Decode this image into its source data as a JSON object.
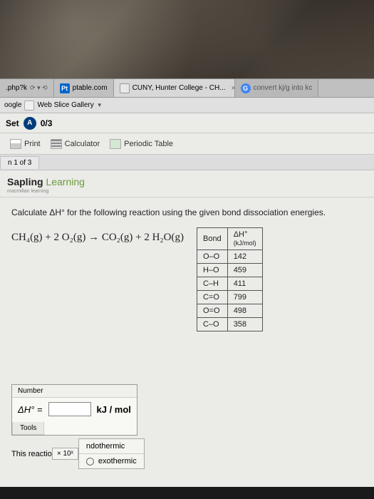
{
  "tabs": [
    {
      "favicon_bg": "#fff",
      "label": ".php?k",
      "controls": "⟳ ▾ ⟲"
    },
    {
      "favicon_class": "fav-pt",
      "favicon_text": "Pt",
      "label": "ptable.com"
    },
    {
      "favicon_class": "fav-sap",
      "favicon_text": "",
      "label": "CUNY, Hunter College - CH...",
      "closable": true,
      "active": true
    },
    {
      "favicon_class": "fav-g",
      "favicon_text": "G",
      "label": "convert kj/g into kc"
    }
  ],
  "bookmarks": {
    "item1": "oogle",
    "item2": "Web Slice Gallery"
  },
  "set_bar": {
    "label": "Set",
    "badge": "A",
    "progress": "0/3"
  },
  "toolbar": {
    "print": "Print",
    "calc": "Calculator",
    "periodic": "Periodic Table"
  },
  "page_tab": "n 1 of 3",
  "brand": {
    "name": "Sapling",
    "sub": "Learning",
    "tagline": "macmillan learning"
  },
  "question_text": "Calculate ΔH° for the following reaction using the given bond dissociation energies.",
  "equation": "CH₄(g) + 2 O₂(g)  →  CO₂(g) + 2 H₂O(g)",
  "bond_table": {
    "header": {
      "col1": "Bond",
      "col2_top": "ΔH°",
      "col2_sub": "(kJ/mol)"
    },
    "rows": [
      {
        "bond": "O–O",
        "value": "142"
      },
      {
        "bond": "H–O",
        "value": "459"
      },
      {
        "bond": "C–H",
        "value": "411"
      },
      {
        "bond": "C=O",
        "value": "799"
      },
      {
        "bond": "O=O",
        "value": "498"
      },
      {
        "bond": "C–O",
        "value": "358"
      }
    ]
  },
  "answer": {
    "number_label": "Number",
    "lhs": "ΔH° =",
    "unit": "kJ / mol",
    "tools_label": "Tools",
    "ten_power": "× 10ˣ",
    "reaction_prefix": "This reactio",
    "opt1": "ndothermic",
    "opt2": "exothermic"
  },
  "colors": {
    "page_bg": "#ebebe8",
    "badge_bg": "#003d7a",
    "learning_color": "#6a9c3a"
  }
}
